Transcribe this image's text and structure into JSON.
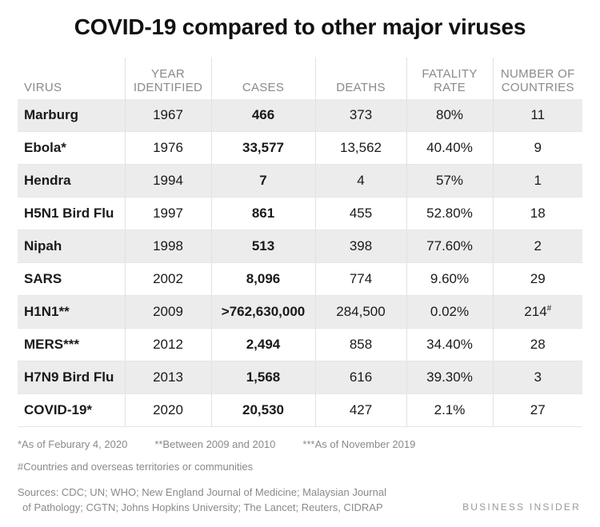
{
  "chart_data": {
    "type": "table",
    "title": "COVID-19 compared to other major viruses",
    "columns": [
      {
        "line1": "VIRUS",
        "line2": ""
      },
      {
        "line1": "YEAR",
        "line2": "IDENTIFIED"
      },
      {
        "line1": "CASES",
        "line2": ""
      },
      {
        "line1": "DEATHS",
        "line2": ""
      },
      {
        "line1": "FATALITY",
        "line2": "RATE"
      },
      {
        "line1": "NUMBER OF",
        "line2": "COUNTRIES"
      }
    ],
    "rows": [
      {
        "virus": "Marburg",
        "year": "1967",
        "cases": "466",
        "deaths": "373",
        "fatality": "80%",
        "countries": "11",
        "countries_mark": ""
      },
      {
        "virus": "Ebola*",
        "year": "1976",
        "cases": "33,577",
        "deaths": "13,562",
        "fatality": "40.40%",
        "countries": "9",
        "countries_mark": ""
      },
      {
        "virus": "Hendra",
        "year": "1994",
        "cases": "7",
        "deaths": "4",
        "fatality": "57%",
        "countries": "1",
        "countries_mark": ""
      },
      {
        "virus": "H5N1 Bird Flu",
        "year": "1997",
        "cases": "861",
        "deaths": "455",
        "fatality": "52.80%",
        "countries": "18",
        "countries_mark": ""
      },
      {
        "virus": "Nipah",
        "year": "1998",
        "cases": "513",
        "deaths": "398",
        "fatality": "77.60%",
        "countries": "2",
        "countries_mark": ""
      },
      {
        "virus": "SARS",
        "year": "2002",
        "cases": "8,096",
        "deaths": "774",
        "fatality": "9.60%",
        "countries": "29",
        "countries_mark": ""
      },
      {
        "virus": "H1N1**",
        "year": "2009",
        "cases": ">762,630,000",
        "deaths": "284,500",
        "fatality": "0.02%",
        "countries": "214",
        "countries_mark": "#"
      },
      {
        "virus": "MERS***",
        "year": "2012",
        "cases": "2,494",
        "deaths": "858",
        "fatality": "34.40%",
        "countries": "28",
        "countries_mark": ""
      },
      {
        "virus": "H7N9 Bird Flu",
        "year": "2013",
        "cases": "1,568",
        "deaths": "616",
        "fatality": "39.30%",
        "countries": "3",
        "countries_mark": ""
      },
      {
        "virus": "COVID-19*",
        "year": "2020",
        "cases": "20,530",
        "deaths": "427",
        "fatality": "2.1%",
        "countries": "27",
        "countries_mark": ""
      }
    ]
  },
  "footnotes": {
    "note1": "*As of Feburary 4, 2020",
    "note2": "**Between 2009 and 2010",
    "note3": "***As of November 2019",
    "note4": "#Countries and overseas territories or communities",
    "sources_line1": "Sources: CDC; UN; WHO; New England Journal of Medicine; Malaysian Journal",
    "sources_line2": "of Pathology; CGTN; Johns Hopkins University; The Lancet; Reuters, CIDRAP"
  },
  "brand": "BUSINESS INSIDER",
  "colors": {
    "row_stripe": "#ececec",
    "header_text": "#8a8a8a",
    "text": "#1a1a1a"
  }
}
